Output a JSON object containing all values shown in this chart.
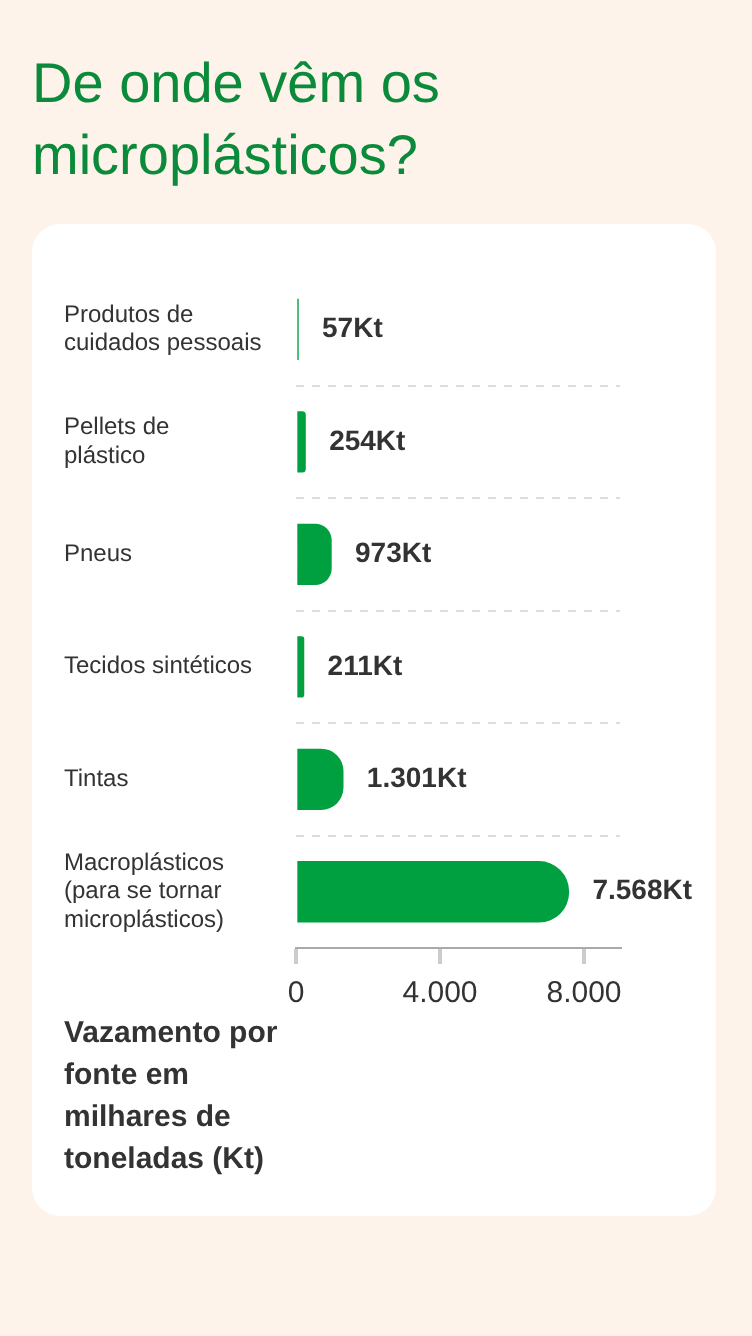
{
  "chart_data": {
    "type": "bar",
    "orientation": "horizontal",
    "title": "De onde vêm os microplásticos?",
    "xlabel": "Vazamento por fonte em milhares de toneladas (Kt)",
    "categories": [
      "Produtos de cuidados pessoais",
      "Pellets de plástico",
      "Pneus",
      "Tecidos sintéticos",
      "Tintas",
      "Macroplásticos (para se tornar microplásticos)"
    ],
    "values": [
      57,
      254,
      973,
      211,
      1301,
      7568
    ],
    "value_labels": [
      "57Kt",
      "254Kt",
      "973Kt",
      "211Kt",
      "1.301Kt",
      "7.568Kt"
    ],
    "color": "#00a040",
    "xlim": [
      0,
      9000
    ],
    "xticks": [
      {
        "value": 0,
        "label": "0"
      },
      {
        "value": 4000,
        "label": "4.000"
      },
      {
        "value": 8000,
        "label": "8.000"
      }
    ],
    "grid": "y",
    "legend": false
  }
}
